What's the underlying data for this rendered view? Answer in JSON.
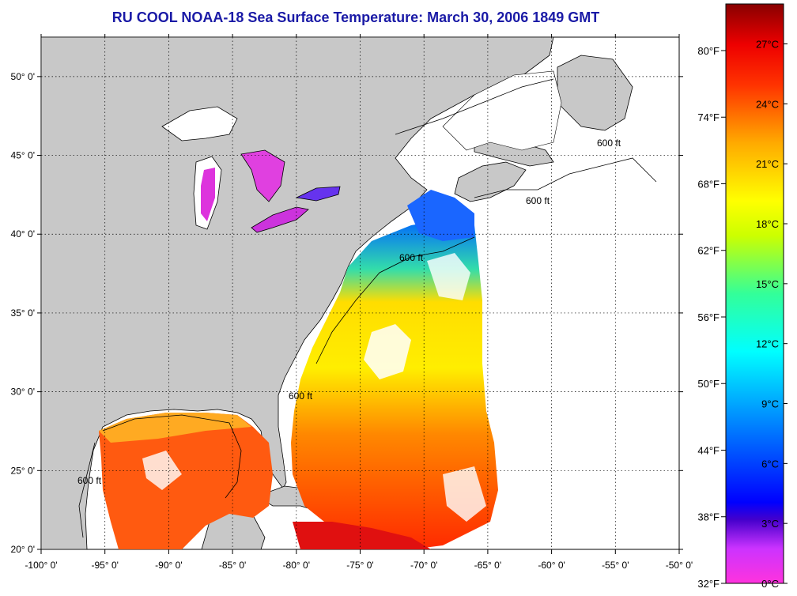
{
  "title": "RU COOL  NOAA-18  Sea Surface Temperature:  March 30, 2006 1849 GMT",
  "map": {
    "lon_range": [
      -100,
      -50
    ],
    "lat_range": [
      20,
      52.5
    ],
    "lon_ticks": [
      "-100° 0'",
      "-95° 0'",
      "-90° 0'",
      "-85° 0'",
      "-80° 0'",
      "-75° 0'",
      "-70° 0'",
      "-65° 0'",
      "-60° 0'",
      "-55° 0'",
      "-50° 0'"
    ],
    "lat_ticks": [
      "20° 0'",
      "25° 0'",
      "30° 0'",
      "35° 0'",
      "40° 0'",
      "45° 0'",
      "50° 0'"
    ],
    "grid": true,
    "contour_label": "600 ft",
    "colors": {
      "land": "#c8c8c8",
      "ocean_nodata": "#ffffff",
      "grid": "#000000"
    }
  },
  "colorbar": {
    "fahrenheit_ticks": [
      "32°F",
      "38°F",
      "44°F",
      "50°F",
      "56°F",
      "62°F",
      "68°F",
      "74°F",
      "80°F"
    ],
    "celsius_ticks": [
      "0°C",
      "3°C",
      "6°C",
      "9°C",
      "12°C",
      "15°C",
      "18°C",
      "21°C",
      "24°C",
      "27°C"
    ],
    "range_celsius": [
      0,
      29
    ]
  }
}
